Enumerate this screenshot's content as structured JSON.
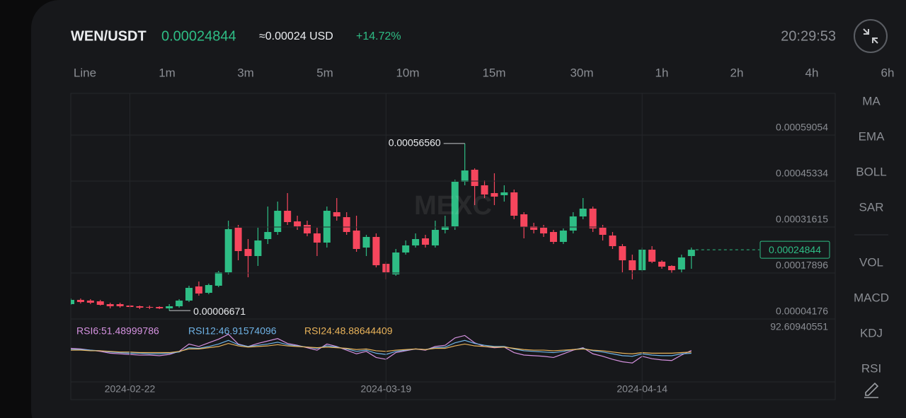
{
  "header": {
    "pair": "WEN/USDT",
    "price": "0.00024844",
    "approx": "≈0.00024 USD",
    "change": "+14.72%",
    "time": "20:29:53"
  },
  "timeframes": [
    "Line",
    "1m",
    "3m",
    "5m",
    "10m",
    "15m",
    "30m",
    "1h",
    "2h",
    "4h",
    "6h"
  ],
  "indicators": [
    "MA",
    "EMA",
    "BOLL",
    "SAR",
    "VOL",
    "MACD",
    "KDJ",
    "RSI"
  ],
  "chart_data": {
    "type": "candlestick",
    "watermark": "MEXC",
    "up_color": "#2ebd85",
    "down_color": "#f6465d",
    "xlim": [
      0,
      77.6
    ],
    "xticks": [
      {
        "value": 6,
        "label": "2024-02-22"
      },
      {
        "value": 32,
        "label": "2024-03-19"
      },
      {
        "value": 58,
        "label": "2024-04-14"
      }
    ],
    "ylim": [
      4.176e-05,
      0.00071507
    ],
    "yticks": [
      4.176e-05,
      0.00017896,
      0.00031615,
      0.00045334,
      0.00059054
    ],
    "grid": true,
    "high_label": "0.00056560",
    "low_label": "0.00006671",
    "last_label": "0.00024844",
    "open": [
      8.608e-05,
      9.875e-05,
      9.664e-05,
      9.453e-05,
      8.608e-05,
      8.608e-05,
      8.186e-05,
      7.975e-05,
      7.764e-05,
      7.764e-05,
      7.342e-05,
      7.975e-05,
      9.664e-05,
      0.00013886,
      0.00011986,
      0.00014097,
      0.00018105,
      0.00031403,
      0.0002507,
      0.00022959,
      0.00028025,
      0.00030136,
      0.00036468,
      0.00033303,
      0.00032247,
      0.00029714,
      0.0002697,
      0.00036046,
      0.00034568,
      0.00030559,
      0.00025492,
      0.00028659,
      0.00020637,
      0.00017471,
      0.00024014,
      0.00026125,
      0.00028236,
      0.00026125,
      0.0003077,
      0.00031825,
      0.00045123,
      0.00048712,
      0.00044068,
      0.00041746,
      0.00041113,
      0.00041957,
      0.00035413,
      0.00031825,
      0.00031403,
      0.00030136,
      0.00027181,
      0.00030559,
      0.0003478,
      0.00037101,
      0.00031403,
      0.00029081,
      0.00025914,
      0.00021692,
      0.00018738,
      0.00024859,
      0.0002127,
      0.00020004,
      0.00018949,
      0.00022959
    ],
    "high": [
      0.00010297,
      0.00010297,
      0.00010086,
      9.875e-05,
      9.03e-05,
      9.03e-05,
      8.608e-05,
      8.186e-05,
      8.186e-05,
      7.975e-05,
      8.608e-05,
      0.00010086,
      0.00014097,
      0.00015363,
      0.0001473,
      0.00018527,
      0.00033514,
      0.00032247,
      0.00028025,
      0.00031403,
      0.00037735,
      0.00039213,
      0.00041746,
      0.00034991,
      0.00033514,
      0.00031403,
      0.00037735,
      0.00040268,
      0.00036046,
      0.00034991,
      0.00029292,
      0.00029714,
      0.0002127,
      0.0002507,
      0.00027603,
      0.00029714,
      0.00029292,
      0.00033514,
      0.00034991,
      0.00045756,
      0.0005656,
      0.00049134,
      0.00045546,
      0.00047656,
      0.00044068,
      0.00042801,
      0.00036046,
      0.00032881,
      0.00032247,
      0.0003077,
      0.00031192,
      0.00036046,
      0.00040268,
      0.00037735,
      0.00032247,
      0.00030136,
      0.00026548,
      0.00023381,
      0.00025492,
      0.00025914,
      0.00021692,
      0.00020215,
      0.00023381,
      0.00025492
    ],
    "low": [
      8.397e-05,
      8.819e-05,
      8.608e-05,
      8.186e-05,
      7.342e-05,
      7.553e-05,
      7.342e-05,
      7.13e-05,
      7.13e-05,
      7.13e-05,
      6.671e-05,
      7.553e-05,
      9.241e-05,
      0.00011141,
      0.00011564,
      0.00013675,
      0.00017471,
      0.00021692,
      0.00016627,
      0.00020004,
      0.00026548,
      0.00029292,
      0.00032247,
      0.0003077,
      0.0002887,
      0.00022959,
      0.00025492,
      0.00033514,
      0.00029292,
      0.00024226,
      0.00022959,
      0.00019581,
      0.00015994,
      0.00017049,
      0.00023381,
      0.00025492,
      0.00025492,
      0.00025492,
      0.00029714,
      0.0003077,
      0.00044068,
      0.00038157,
      0.00040268,
      0.00038157,
      0.00039213,
      0.00033936,
      0.00028236,
      0.00029714,
      0.00028659,
      0.00026548,
      0.00026548,
      0.00029714,
      0.00033936,
      0.00030136,
      0.00027603,
      0.0002507,
      0.00018105,
      0.00015994,
      0.00018316,
      0.00020848,
      0.0001916,
      0.00017894,
      0.00018105,
      0.0001916
    ],
    "close": [
      9.875e-05,
      9.241e-05,
      9.03e-05,
      8.397e-05,
      7.975e-05,
      7.975e-05,
      7.764e-05,
      7.553e-05,
      7.553e-05,
      7.342e-05,
      7.975e-05,
      9.664e-05,
      0.00013463,
      0.00011775,
      0.00014308,
      0.00018105,
      0.00030981,
      0.00024437,
      0.00022959,
      0.00027603,
      0.00030136,
      0.00036468,
      0.00033092,
      0.00031825,
      0.00029714,
      0.0002697,
      0.00036468,
      0.0003478,
      0.00030136,
      0.0002507,
      0.00028659,
      0.00020215,
      0.00018105,
      0.00024014,
      0.00026125,
      0.00028025,
      0.00026337,
      0.0003077,
      0.00031825,
      0.00045123,
      0.00048501,
      0.00043857,
      0.00041324,
      0.0004069,
      0.00041957,
      0.00034991,
      0.00031614,
      0.0003077,
      0.00029714,
      0.00027181,
      0.00030559,
      0.0003478,
      0.00037101,
      0.00031192,
      0.00029292,
      0.00025914,
      0.00021692,
      0.00018738,
      0.00024859,
      0.0002127,
      0.00019792,
      0.00018738,
      0.00022536,
      0.00024844
    ],
    "rsi": {
      "max": 92.60940551,
      "series": [
        {
          "label": "RSI6:51.48999786",
          "color": "#d592e0",
          "values": [
            55,
            54,
            52,
            50,
            47,
            46,
            45,
            44,
            44,
            43,
            45,
            50,
            62,
            58,
            64,
            70,
            78,
            62,
            58,
            63,
            67,
            71,
            63,
            60,
            56,
            52,
            62,
            58,
            52,
            46,
            50,
            40,
            37,
            48,
            51,
            54,
            52,
            58,
            60,
            72,
            76,
            64,
            58,
            56,
            57,
            48,
            44,
            43,
            42,
            40,
            46,
            52,
            56,
            46,
            42,
            37,
            33,
            31,
            42,
            38,
            36,
            35,
            44,
            51.48999786
          ]
        },
        {
          "label": "RSI12:46.91574096",
          "color": "#6fb3e6",
          "values": [
            53,
            53,
            52,
            51,
            49,
            48,
            47,
            47,
            46,
            46,
            47,
            49,
            56,
            55,
            58,
            62,
            68,
            61,
            58,
            60,
            62,
            65,
            61,
            59,
            57,
            55,
            59,
            57,
            54,
            50,
            52,
            47,
            45,
            50,
            52,
            54,
            53,
            56,
            57,
            64,
            68,
            63,
            60,
            58,
            58,
            54,
            51,
            50,
            49,
            48,
            50,
            53,
            55,
            51,
            49,
            46,
            43,
            42,
            46,
            44,
            43,
            43,
            46,
            46.91574096
          ]
        },
        {
          "label": "RSI24:48.88644409",
          "color": "#e9b35a",
          "values": [
            52,
            52,
            51,
            51,
            50,
            49,
            49,
            48,
            48,
            48,
            48,
            50,
            54,
            54,
            56,
            58,
            63,
            59,
            57,
            58,
            59,
            61,
            59,
            58,
            57,
            56,
            57,
            56,
            55,
            53,
            54,
            51,
            50,
            52,
            53,
            54,
            53,
            55,
            55,
            59,
            62,
            59,
            58,
            57,
            57,
            55,
            53,
            52,
            52,
            51,
            52,
            53,
            54,
            52,
            51,
            49,
            47,
            46,
            48,
            47,
            47,
            47,
            48,
            48.88644409
          ]
        }
      ]
    }
  }
}
